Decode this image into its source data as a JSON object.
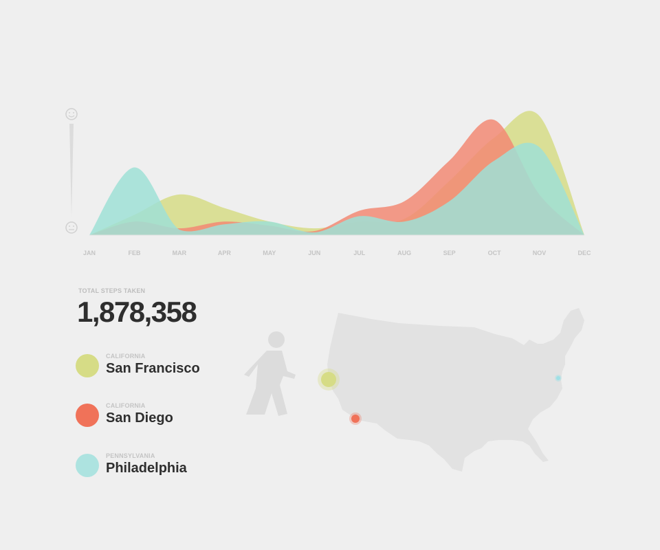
{
  "chart_data": {
    "type": "area",
    "categories": [
      "JAN",
      "FEB",
      "MAR",
      "APR",
      "MAY",
      "JUN",
      "JUL",
      "AUG",
      "SEP",
      "OCT",
      "NOV",
      "DEC"
    ],
    "ylim": [
      0,
      100
    ],
    "series": [
      {
        "name": "San Francisco",
        "color": "#d6dc86",
        "values": [
          0,
          15,
          30,
          20,
          10,
          5,
          10,
          12,
          40,
          72,
          88,
          0
        ]
      },
      {
        "name": "San Diego",
        "color": "#f28a74",
        "values": [
          0,
          10,
          5,
          10,
          7,
          3,
          18,
          25,
          55,
          85,
          30,
          0
        ]
      },
      {
        "name": "Philadelphia",
        "color": "#9fe0d6",
        "values": [
          0,
          50,
          4,
          8,
          10,
          2,
          14,
          10,
          25,
          55,
          65,
          0
        ]
      }
    ],
    "scale_icons": {
      "top": "happy-face-icon",
      "bottom": "neutral-face-icon"
    }
  },
  "summary": {
    "label": "TOTAL STEPS TAKEN",
    "value": "1,878,358"
  },
  "legend": [
    {
      "state": "CALIFORNIA",
      "city": "San Francisco",
      "color": "#d6dc86"
    },
    {
      "state": "CALIFORNIA",
      "city": "San Diego",
      "color": "#f07259"
    },
    {
      "state": "PENNSYLVANIA",
      "city": "Philadelphia",
      "color": "#ade3e0"
    }
  ],
  "map": {
    "icon": "walking-person-icon",
    "markers": [
      {
        "city": "San Francisco",
        "color": "#d6dc86"
      },
      {
        "city": "San Diego",
        "color": "#f07259"
      },
      {
        "city": "Philadelphia",
        "color": "#9fe0e6"
      }
    ]
  }
}
